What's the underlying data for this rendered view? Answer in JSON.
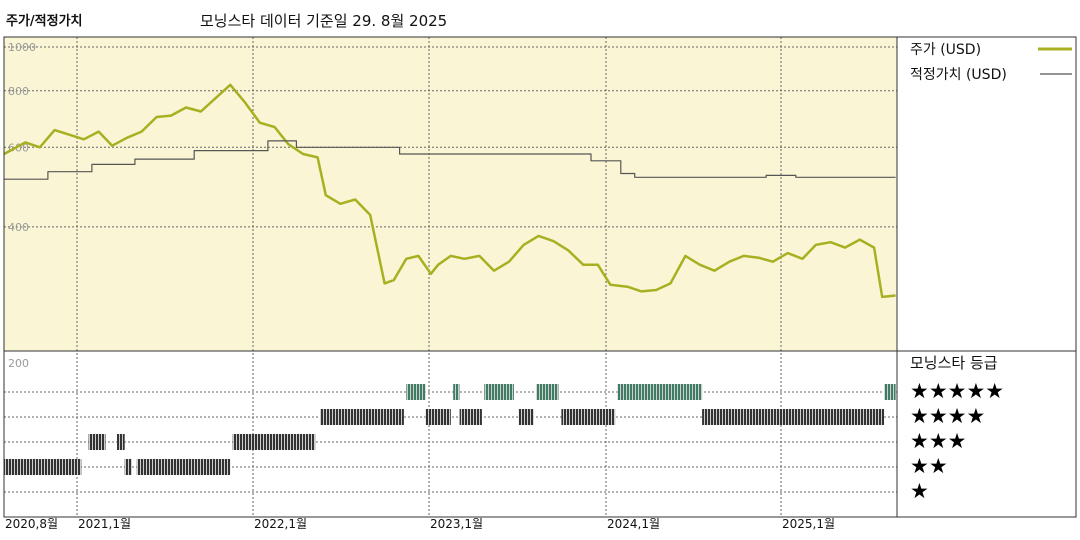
{
  "header": {
    "title": "주가/적정가치",
    "subtitle": "모닝스타 데이터 기준일 29. 8월 2025"
  },
  "chart_data": {
    "type": "line",
    "title": "주가/적정가치",
    "subtitle": "모닝스타 데이터 기준일 29. 8월 2025",
    "y_ticks": [
      "1000",
      "800",
      "600",
      "400",
      "200"
    ],
    "x_ticks": [
      "2020,8월",
      "2021,1월",
      "2022,1월",
      "2023,1월",
      "2024,1월",
      "2025,1월"
    ],
    "x_range": [
      "2020-08",
      "2025-09"
    ],
    "y_scale": "log",
    "y_range": [
      200,
      1000
    ],
    "grid": true,
    "legend": {
      "position": "right"
    },
    "colors": {
      "price": "#a8b022",
      "fair_value": "#555555",
      "rating_5": "#3e7d63",
      "rating_4": "#333333",
      "rating_3": "#333333",
      "rating_2": "#333333",
      "plot_bg": "#faf6d5"
    },
    "series": [
      {
        "name": "주가 (USD)",
        "points": [
          [
            "2020-08-01",
            580
          ],
          [
            "2020-09-15",
            615
          ],
          [
            "2020-10-15",
            600
          ],
          [
            "2020-11-15",
            655
          ],
          [
            "2020-12-15",
            640
          ],
          [
            "2021-01-15",
            625
          ],
          [
            "2021-02-15",
            650
          ],
          [
            "2021-03-15",
            605
          ],
          [
            "2021-04-15",
            630
          ],
          [
            "2021-05-15",
            650
          ],
          [
            "2021-06-15",
            700
          ],
          [
            "2021-07-15",
            705
          ],
          [
            "2021-08-15",
            735
          ],
          [
            "2021-09-15",
            720
          ],
          [
            "2021-10-15",
            770
          ],
          [
            "2021-11-15",
            825
          ],
          [
            "2021-12-15",
            755
          ],
          [
            "2022-01-15",
            680
          ],
          [
            "2022-02-15",
            665
          ],
          [
            "2022-03-15",
            610
          ],
          [
            "2022-04-15",
            580
          ],
          [
            "2022-05-15",
            570
          ],
          [
            "2022-06-01",
            470
          ],
          [
            "2022-07-01",
            450
          ],
          [
            "2022-08-01",
            460
          ],
          [
            "2022-09-01",
            425
          ],
          [
            "2022-10-01",
            300
          ],
          [
            "2022-10-20",
            305
          ],
          [
            "2022-11-15",
            340
          ],
          [
            "2022-12-10",
            345
          ],
          [
            "2023-01-05",
            315
          ],
          [
            "2023-01-20",
            330
          ],
          [
            "2023-02-15",
            345
          ],
          [
            "2023-03-15",
            340
          ],
          [
            "2023-04-15",
            345
          ],
          [
            "2023-05-15",
            320
          ],
          [
            "2023-06-15",
            335
          ],
          [
            "2023-07-15",
            365
          ],
          [
            "2023-08-15",
            382
          ],
          [
            "2023-09-15",
            372
          ],
          [
            "2023-10-15",
            355
          ],
          [
            "2023-11-15",
            330
          ],
          [
            "2023-12-15",
            330
          ],
          [
            "2024-01-10",
            298
          ],
          [
            "2024-02-15",
            295
          ],
          [
            "2024-03-15",
            288
          ],
          [
            "2024-04-15",
            290
          ],
          [
            "2024-05-15",
            300
          ],
          [
            "2024-06-15",
            345
          ],
          [
            "2024-07-15",
            330
          ],
          [
            "2024-08-15",
            320
          ],
          [
            "2024-09-15",
            335
          ],
          [
            "2024-10-15",
            345
          ],
          [
            "2024-11-15",
            342
          ],
          [
            "2024-12-15",
            335
          ],
          [
            "2025-01-15",
            350
          ],
          [
            "2025-02-15",
            340
          ],
          [
            "2025-03-15",
            365
          ],
          [
            "2025-04-15",
            370
          ],
          [
            "2025-05-15",
            360
          ],
          [
            "2025-06-15",
            375
          ],
          [
            "2025-07-15",
            360
          ],
          [
            "2025-08-01",
            280
          ],
          [
            "2025-08-29",
            282
          ]
        ]
      },
      {
        "name": "적정가치 (USD)",
        "points": [
          [
            "2020-08-01",
            510
          ],
          [
            "2020-11-01",
            510
          ],
          [
            "2020-11-01",
            530
          ],
          [
            "2021-02-01",
            530
          ],
          [
            "2021-02-01",
            550
          ],
          [
            "2021-05-01",
            550
          ],
          [
            "2021-05-01",
            565
          ],
          [
            "2021-09-01",
            565
          ],
          [
            "2021-09-01",
            590
          ],
          [
            "2022-02-01",
            590
          ],
          [
            "2022-02-01",
            620
          ],
          [
            "2022-04-01",
            620
          ],
          [
            "2022-04-01",
            600
          ],
          [
            "2022-11-01",
            600
          ],
          [
            "2022-11-01",
            580
          ],
          [
            "2023-12-01",
            580
          ],
          [
            "2023-12-01",
            560
          ],
          [
            "2024-02-01",
            560
          ],
          [
            "2024-02-01",
            525
          ],
          [
            "2024-03-01",
            525
          ],
          [
            "2024-03-01",
            515
          ],
          [
            "2024-12-01",
            515
          ],
          [
            "2024-12-01",
            520
          ],
          [
            "2025-02-01",
            520
          ],
          [
            "2025-02-01",
            515
          ],
          [
            "2025-08-29",
            515
          ]
        ]
      }
    ],
    "rating": {
      "title": "모닝스타 등급",
      "levels": [
        "★★★★★",
        "★★★★",
        "★★★",
        "★★",
        "★"
      ],
      "segments": [
        {
          "stars": 2,
          "from": "2020-08-01",
          "to": "2021-01-10"
        },
        {
          "stars": 3,
          "from": "2021-01-25",
          "to": "2021-03-01"
        },
        {
          "stars": 3,
          "from": "2021-03-25",
          "to": "2021-04-10"
        },
        {
          "stars": 2,
          "from": "2021-04-10",
          "to": "2021-04-25"
        },
        {
          "stars": 2,
          "from": "2021-05-05",
          "to": "2021-11-15"
        },
        {
          "stars": 3,
          "from": "2021-11-20",
          "to": "2022-05-10"
        },
        {
          "stars": 4,
          "from": "2022-05-20",
          "to": "2022-11-10"
        },
        {
          "stars": 5,
          "from": "2022-11-15",
          "to": "2022-12-25"
        },
        {
          "stars": 4,
          "from": "2022-12-25",
          "to": "2023-02-15"
        },
        {
          "stars": 5,
          "from": "2023-02-20",
          "to": "2023-03-05"
        },
        {
          "stars": 4,
          "from": "2023-03-05",
          "to": "2023-04-20"
        },
        {
          "stars": 5,
          "from": "2023-04-25",
          "to": "2023-06-25"
        },
        {
          "stars": 4,
          "from": "2023-07-05",
          "to": "2023-08-05"
        },
        {
          "stars": 5,
          "from": "2023-08-10",
          "to": "2023-09-25"
        },
        {
          "stars": 4,
          "from": "2023-10-01",
          "to": "2024-01-20"
        },
        {
          "stars": 5,
          "from": "2024-01-25",
          "to": "2024-07-20"
        },
        {
          "stars": 4,
          "from": "2024-07-20",
          "to": "2025-08-05"
        },
        {
          "stars": 5,
          "from": "2025-08-05",
          "to": "2025-08-29"
        }
      ]
    }
  }
}
